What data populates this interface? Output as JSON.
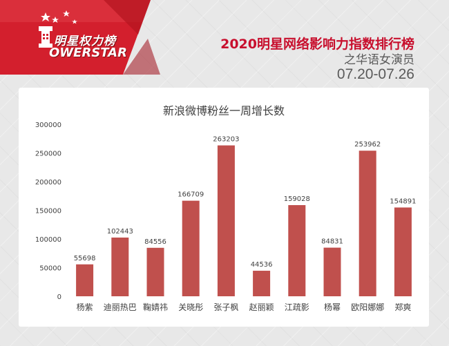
{
  "header": {
    "logo_cn": "明星权力榜",
    "logo_en": "OWERSTAR",
    "title": "2020明星网络影响力指数排行榜",
    "subtitle": "之华语女演员",
    "date_range": "07.20-07.26"
  },
  "colors": {
    "bar": "#c0504d",
    "accent_red": "#c8102e",
    "logo_red": "#d31f2d"
  },
  "chart_data": {
    "type": "bar",
    "title": "新浪微博粉丝一周增长数",
    "categories": [
      "杨紫",
      "迪丽热巴",
      "鞠婧祎",
      "关晓彤",
      "张子枫",
      "赵丽颖",
      "江疏影",
      "杨幂",
      "欧阳娜娜",
      "郑爽"
    ],
    "values": [
      55698,
      102443,
      84556,
      166709,
      263203,
      44536,
      159028,
      84831,
      253962,
      154891
    ],
    "data_labels": [
      "55698",
      "102443",
      "84556",
      "166709",
      "263203",
      "44536",
      "159028",
      "84831",
      "253962",
      "154891"
    ],
    "y_ticks": [
      "0",
      "50000",
      "100000",
      "150000",
      "200000",
      "250000",
      "300000"
    ],
    "ylim": [
      0,
      300000
    ],
    "xlabel": "",
    "ylabel": "",
    "grid": false,
    "legend": "none"
  }
}
